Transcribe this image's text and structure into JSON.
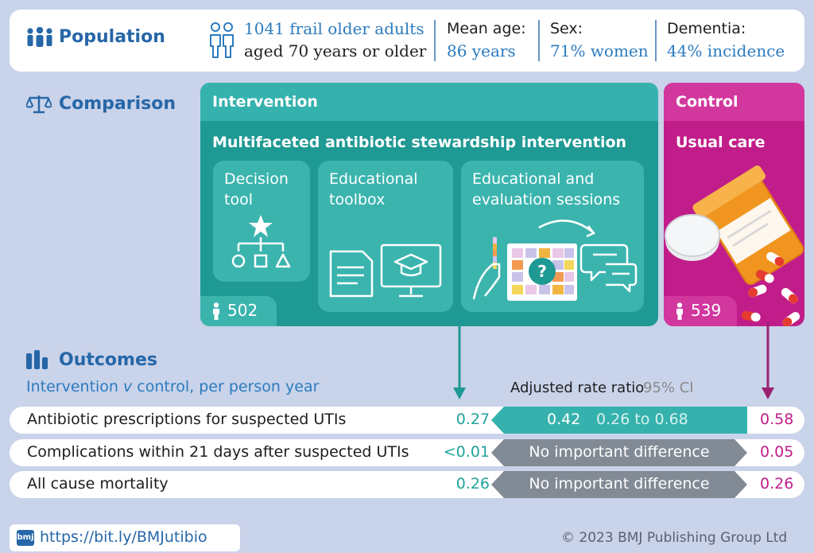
{
  "population": {
    "title": "Population",
    "participants_line1": "1041 frail older adults",
    "participants_line2": "aged 70 years or older",
    "mean_age_label": "Mean age:",
    "mean_age_value": "86 years",
    "sex_label": "Sex:",
    "sex_value": "71% women",
    "dementia_label": "Dementia:",
    "dementia_value": "44% incidence"
  },
  "comparison": {
    "title": "Comparison",
    "intervention": {
      "title": "Intervention",
      "subtitle": "Multifaceted antibiotic stewardship intervention",
      "components": [
        {
          "line1": "Decision",
          "line2": "tool"
        },
        {
          "line1": "Educational",
          "line2": "toolbox"
        },
        {
          "line1": "Educational and",
          "line2": "evaluation sessions"
        }
      ],
      "count": "502"
    },
    "control": {
      "title": "Control",
      "subtitle": "Usual care",
      "count": "539"
    }
  },
  "outcomes": {
    "title": "Outcomes",
    "subtitle_pre": "Intervention ",
    "subtitle_v": "v",
    "subtitle_post": " control, per person year",
    "ratio_header": "Adjusted rate ratio",
    "ci_header": "95% CI",
    "rows": [
      {
        "label": "Antibiotic prescriptions for suspected UTIs",
        "intervention": "0.27",
        "ratio": "0.42",
        "ci": "0.26 to 0.68",
        "control": "0.58"
      },
      {
        "label": "Complications within 21 days after suspected UTIs",
        "intervention": "<0.01",
        "result": "No important difference",
        "control": "0.05"
      },
      {
        "label": "All cause mortality",
        "intervention": "0.26",
        "result": "No important difference",
        "control": "0.26"
      }
    ]
  },
  "footer": {
    "badge": "bmj",
    "link": "https://bit.ly/BMJutibio",
    "copyright": "© 2023 BMJ Publishing Group Ltd"
  },
  "colors": {
    "background": "#c9d3ea",
    "teal": "#1f9993",
    "magenta": "#c11d8a",
    "blue": "#2667a8",
    "grey": "#818a95"
  }
}
